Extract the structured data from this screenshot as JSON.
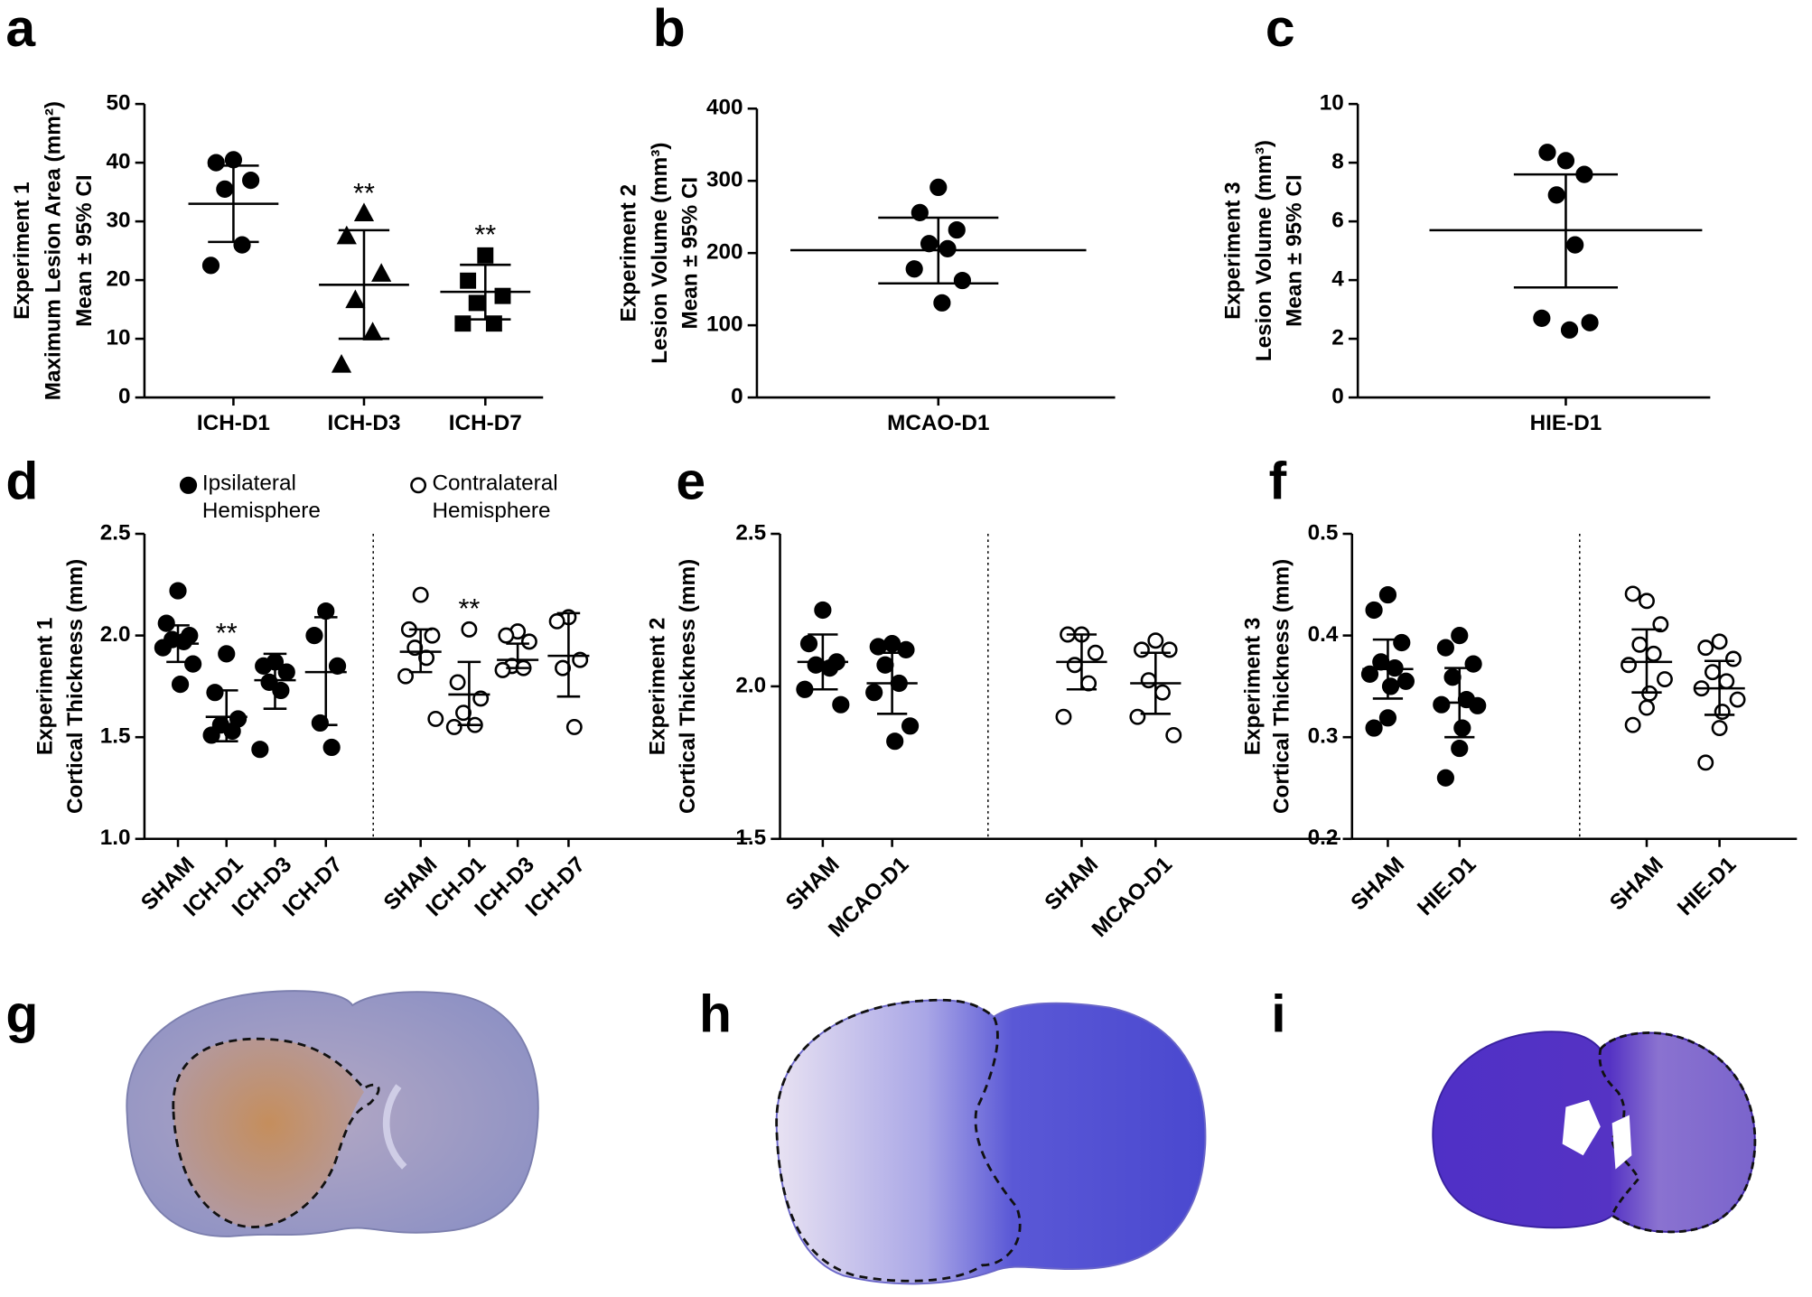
{
  "chart_data": [
    {
      "type": "dot",
      "panel": "a",
      "ylabel": [
        "Experiment 1",
        "Maximum Lesion Area (mm²)",
        "Mean ± 95% CI"
      ],
      "ylim": [
        0,
        50
      ],
      "yticks": [
        0,
        10,
        20,
        30,
        40,
        50
      ],
      "categories": [
        "ICH-D1",
        "ICH-D3",
        "ICH-D7"
      ],
      "markers": [
        "circle",
        "triangle",
        "square"
      ],
      "series": [
        {
          "filled": true,
          "values": [
            [
              40.5,
              40,
              37,
              35.5,
              26,
              22.5
            ],
            [
              31.3,
              27.4,
              21,
              16.5,
              11,
              5.5
            ],
            [
              24.2,
              19.9,
              17.3,
              16.1,
              12.6,
              12.6
            ]
          ],
          "mean": [
            33,
            19.2,
            18
          ],
          "ci_low": [
            26.5,
            10,
            13.3
          ],
          "ci_high": [
            39.5,
            28.5,
            22.6
          ]
        }
      ],
      "annotations": [
        {
          "series": 0,
          "index": 1,
          "text": "**"
        },
        {
          "series": 0,
          "index": 2,
          "text": "**"
        }
      ]
    },
    {
      "type": "dot",
      "panel": "b",
      "ylabel": [
        "Experiment 2",
        "Lesion Volume  (mm³)",
        "Mean ± 95% CI"
      ],
      "ylim": [
        0,
        400
      ],
      "yticks": [
        0,
        100,
        200,
        300,
        400
      ],
      "categories": [
        "MCAO-D1"
      ],
      "markers": [
        "circle"
      ],
      "series": [
        {
          "filled": true,
          "values": [
            [
              291,
              256,
              232,
              213,
              206,
              178,
              162,
              131
            ]
          ],
          "mean": [
            204
          ],
          "ci_low": [
            158
          ],
          "ci_high": [
            249
          ]
        }
      ]
    },
    {
      "type": "dot",
      "panel": "c",
      "ylabel": [
        "Experiment 3",
        "Lesion Volume  (mm³)",
        "Mean ± 95% CI"
      ],
      "ylim": [
        0,
        10
      ],
      "yticks": [
        0,
        2,
        4,
        6,
        8,
        10
      ],
      "categories": [
        "HIE-D1"
      ],
      "markers": [
        "circle"
      ],
      "series": [
        {
          "filled": true,
          "values": [
            [
              8.07,
              8.35,
              7.6,
              6.9,
              5.2,
              2.7,
              2.55,
              2.3
            ]
          ],
          "mean": [
            5.7
          ],
          "ci_low": [
            3.75
          ],
          "ci_high": [
            7.6
          ]
        }
      ]
    },
    {
      "type": "dot",
      "panel": "d",
      "ylabel": [
        "Experiment 1",
        "Cortical Thickness (mm)"
      ],
      "ylim": [
        1,
        2.5
      ],
      "yticks": [
        {
          "value": 1,
          "label": "1.0"
        },
        1.5,
        {
          "value": 2,
          "label": "2.0"
        },
        2.5
      ],
      "categories": [
        "SHAM",
        "ICH-D1",
        "ICH-D3",
        "ICH-D7"
      ],
      "markers": [
        "circle",
        "circle",
        "circle",
        "circle"
      ],
      "series": [
        {
          "name": "Ipsilateral Hemisphere",
          "filled": true,
          "values": [
            [
              2.22,
              2.06,
              2.0,
              1.98,
              1.97,
              1.94,
              1.86,
              1.76
            ],
            [
              1.91,
              1.72,
              1.59,
              1.56,
              1.53,
              1.51
            ],
            [
              1.87,
              1.85,
              1.82,
              1.77,
              1.73,
              1.44
            ],
            [
              2.12,
              2.0,
              1.85,
              1.57,
              1.45
            ]
          ],
          "mean": [
            1.96,
            1.6,
            1.78,
            1.82
          ],
          "ci_low": [
            1.87,
            1.48,
            1.64,
            1.56
          ],
          "ci_high": [
            2.05,
            1.73,
            1.91,
            2.09
          ]
        },
        {
          "name": "Contralateral Hemisphere",
          "filled": false,
          "values": [
            [
              2.2,
              2.03,
              2.0,
              1.94,
              1.89,
              1.8,
              1.59
            ],
            [
              2.03,
              1.77,
              1.69,
              1.62,
              1.56,
              1.55
            ],
            [
              2.02,
              2.0,
              1.97,
              1.85,
              1.84,
              1.83
            ],
            [
              2.09,
              2.07,
              1.88,
              1.84,
              1.55
            ]
          ],
          "mean": [
            1.92,
            1.71,
            1.88,
            1.9
          ],
          "ci_low": [
            1.82,
            1.56,
            1.84,
            1.7
          ],
          "ci_high": [
            2.03,
            1.87,
            1.96,
            2.11
          ]
        }
      ],
      "annotations": [
        {
          "series": 0,
          "index": 1,
          "text": "**"
        },
        {
          "series": 1,
          "index": 1,
          "text": "**"
        }
      ]
    },
    {
      "type": "dot",
      "panel": "e",
      "ylabel": [
        "Experiment 2",
        "Cortical Thickness (mm)"
      ],
      "ylim": [
        1.5,
        2.5
      ],
      "yticks": [
        1.5,
        {
          "value": 2,
          "label": "2.0"
        },
        2.5
      ],
      "categories": [
        "SHAM",
        "MCAO-D1"
      ],
      "markers": [
        "circle",
        "circle"
      ],
      "series": [
        {
          "filled": true,
          "values": [
            [
              2.25,
              2.14,
              2.08,
              2.07,
              2.06,
              1.99,
              1.94
            ],
            [
              2.14,
              2.13,
              2.12,
              2.07,
              2.01,
              1.98,
              1.87,
              1.82
            ]
          ],
          "mean": [
            2.08,
            2.01
          ],
          "ci_low": [
            1.99,
            1.91
          ],
          "ci_high": [
            2.17,
            2.11
          ]
        },
        {
          "filled": false,
          "values": [
            [
              2.17,
              2.17,
              2.11,
              2.07,
              2.01,
              1.9
            ],
            [
              2.15,
              2.12,
              2.12,
              2.02,
              1.98,
              1.9,
              1.84
            ]
          ],
          "mean": [
            2.08,
            2.01
          ],
          "ci_low": [
            1.99,
            1.91
          ],
          "ci_high": [
            2.17,
            2.11
          ]
        }
      ]
    },
    {
      "type": "dot",
      "panel": "f",
      "ylabel": [
        "Experiment 3",
        "Cortical Thickness (mm)"
      ],
      "ylim": [
        0.2,
        0.5
      ],
      "yticks": [
        0.2,
        0.3,
        0.4,
        0.5
      ],
      "categories": [
        "SHAM",
        "HIE-D1"
      ],
      "markers": [
        "circle",
        "circle"
      ],
      "series": [
        {
          "filled": true,
          "values": [
            [
              0.44,
              0.425,
              0.393,
              0.374,
              0.368,
              0.362,
              0.355,
              0.35,
              0.319,
              0.309
            ],
            [
              0.4,
              0.388,
              0.372,
              0.359,
              0.337,
              0.332,
              0.331,
              0.309,
              0.289,
              0.26
            ]
          ],
          "mean": [
            0.367,
            0.334
          ],
          "ci_low": [
            0.338,
            0.3
          ],
          "ci_high": [
            0.396,
            0.368
          ]
        },
        {
          "filled": false,
          "values": [
            [
              0.434,
              0.441,
              0.411,
              0.391,
              0.382,
              0.371,
              0.357,
              0.343,
              0.329,
              0.312
            ],
            [
              0.394,
              0.388,
              0.377,
              0.364,
              0.355,
              0.348,
              0.337,
              0.325,
              0.309,
              0.275
            ]
          ],
          "mean": [
            0.374,
            0.348
          ],
          "ci_low": [
            0.344,
            0.322
          ],
          "ci_high": [
            0.406,
            0.375
          ]
        }
      ]
    }
  ],
  "images": [
    {
      "panel": "g"
    },
    {
      "panel": "h"
    },
    {
      "panel": "i"
    }
  ]
}
